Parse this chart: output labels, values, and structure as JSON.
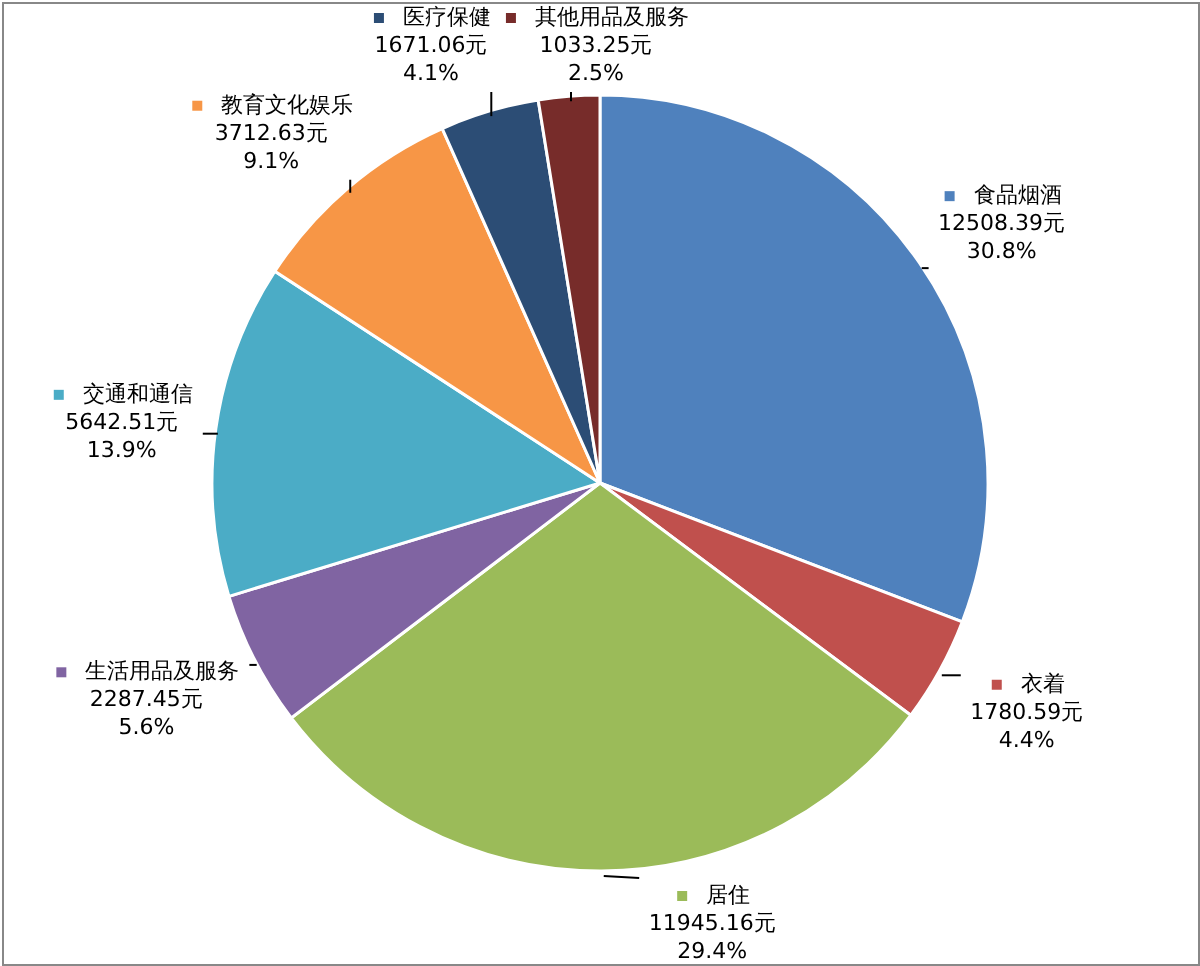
{
  "chart_data": {
    "type": "pie",
    "categories": [
      "食品烟酒",
      "衣着",
      "居住",
      "生活用品及服务",
      "交通和通信",
      "教育文化娱乐",
      "医疗保健",
      "其他用品及服务"
    ],
    "values": [
      12508.39,
      1780.59,
      11945.16,
      2287.45,
      5642.51,
      3712.63,
      1671.06,
      1033.25
    ],
    "colors": [
      "#4f81bd",
      "#c0504d",
      "#9bbb59",
      "#8064a2",
      "#4bacc6",
      "#f79646",
      "#2c4d75",
      "#772c2a"
    ],
    "value_labels": [
      "12508.39元\n30.8%",
      "1780.59元\n4.4%",
      "11945.16元\n29.4%",
      "2287.45元\n5.6%",
      "5642.51元\n13.9%",
      "3712.63元\n9.1%",
      "1671.06元\n4.1%",
      "1033.25元\n2.5%"
    ],
    "legend": true
  }
}
